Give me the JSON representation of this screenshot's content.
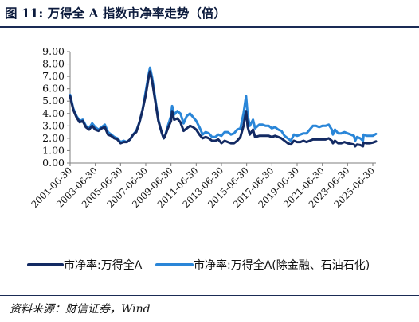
{
  "figure": {
    "title": "图 11:  万得全 A 指数市净率走势（倍）",
    "source": "资料来源：财信证券，Wind"
  },
  "colors": {
    "series1": "#132a63",
    "series2": "#2a86d8",
    "title": "#0b1a3c",
    "rule": "#1a2b55"
  },
  "chart_data": {
    "type": "line",
    "title": "",
    "xlabel": "",
    "ylabel": "",
    "ylim": [
      0,
      9
    ],
    "yticks": [
      "0.00",
      "1.00",
      "2.00",
      "3.00",
      "4.00",
      "5.00",
      "6.00",
      "7.00",
      "8.00",
      "9.00"
    ],
    "xticks": [
      "2001-06-30",
      "2003-06-30",
      "2005-06-30",
      "2007-06-30",
      "2009-06-30",
      "2011-06-30",
      "2013-06-30",
      "2015-06-30",
      "2017-06-30",
      "2019-06-30",
      "2021-06-30",
      "2023-06-30",
      "2025-06-30"
    ],
    "x_range": [
      "2001-06-30",
      "2025-09-30"
    ],
    "grid": false,
    "legend_position": "bottom",
    "series": [
      {
        "name": "市净率:万得全A",
        "color": "#132a63",
        "points": [
          [
            "2001-06-30",
            5.4
          ],
          [
            "2001-09-30",
            4.3
          ],
          [
            "2001-12-31",
            3.7
          ],
          [
            "2002-03-31",
            3.3
          ],
          [
            "2002-06-30",
            3.4
          ],
          [
            "2002-09-30",
            2.9
          ],
          [
            "2002-12-31",
            2.7
          ],
          [
            "2003-03-31",
            3.0
          ],
          [
            "2003-06-30",
            2.7
          ],
          [
            "2003-09-30",
            2.6
          ],
          [
            "2003-12-31",
            2.8
          ],
          [
            "2004-03-31",
            2.9
          ],
          [
            "2004-06-30",
            2.3
          ],
          [
            "2004-09-30",
            2.2
          ],
          [
            "2004-12-31",
            2.0
          ],
          [
            "2005-03-31",
            1.9
          ],
          [
            "2005-06-30",
            1.6
          ],
          [
            "2005-09-30",
            1.7
          ],
          [
            "2005-12-31",
            1.7
          ],
          [
            "2006-03-31",
            1.9
          ],
          [
            "2006-06-30",
            2.3
          ],
          [
            "2006-09-30",
            2.5
          ],
          [
            "2006-12-31",
            3.3
          ],
          [
            "2007-03-31",
            4.3
          ],
          [
            "2007-06-30",
            5.5
          ],
          [
            "2007-09-30",
            7.1
          ],
          [
            "2007-10-31",
            7.4
          ],
          [
            "2007-12-31",
            6.6
          ],
          [
            "2008-03-31",
            5.0
          ],
          [
            "2008-06-30",
            3.4
          ],
          [
            "2008-09-30",
            2.5
          ],
          [
            "2008-11-30",
            2.0
          ],
          [
            "2008-12-31",
            2.1
          ],
          [
            "2009-03-31",
            2.8
          ],
          [
            "2009-06-30",
            3.4
          ],
          [
            "2009-08-03",
            4.2
          ],
          [
            "2009-09-30",
            3.5
          ],
          [
            "2009-12-31",
            3.6
          ],
          [
            "2010-03-31",
            3.3
          ],
          [
            "2010-06-30",
            2.6
          ],
          [
            "2010-09-30",
            2.8
          ],
          [
            "2010-12-31",
            3.0
          ],
          [
            "2011-03-31",
            2.9
          ],
          [
            "2011-06-30",
            2.7
          ],
          [
            "2011-09-30",
            2.3
          ],
          [
            "2011-12-31",
            2.0
          ],
          [
            "2012-03-31",
            2.1
          ],
          [
            "2012-06-30",
            2.0
          ],
          [
            "2012-09-30",
            1.8
          ],
          [
            "2012-12-31",
            1.8
          ],
          [
            "2013-03-31",
            1.9
          ],
          [
            "2013-06-30",
            1.6
          ],
          [
            "2013-09-30",
            1.8
          ],
          [
            "2013-12-31",
            1.7
          ],
          [
            "2014-03-31",
            1.6
          ],
          [
            "2014-06-30",
            1.6
          ],
          [
            "2014-09-30",
            1.8
          ],
          [
            "2014-12-31",
            2.1
          ],
          [
            "2015-03-31",
            3.0
          ],
          [
            "2015-06-12",
            4.2
          ],
          [
            "2015-07-31",
            2.9
          ],
          [
            "2015-09-30",
            2.3
          ],
          [
            "2015-12-31",
            2.7
          ],
          [
            "2016-02-29",
            2.1
          ],
          [
            "2016-06-30",
            2.2
          ],
          [
            "2016-09-30",
            2.2
          ],
          [
            "2016-12-31",
            2.2
          ],
          [
            "2017-03-31",
            2.2
          ],
          [
            "2017-06-30",
            2.1
          ],
          [
            "2017-09-30",
            2.2
          ],
          [
            "2017-12-31",
            2.1
          ],
          [
            "2018-03-31",
            2.0
          ],
          [
            "2018-06-30",
            1.8
          ],
          [
            "2018-09-30",
            1.6
          ],
          [
            "2018-12-31",
            1.5
          ],
          [
            "2019-03-31",
            1.8
          ],
          [
            "2019-06-30",
            1.7
          ],
          [
            "2019-09-30",
            1.7
          ],
          [
            "2019-12-31",
            1.8
          ],
          [
            "2020-03-31",
            1.7
          ],
          [
            "2020-06-30",
            1.8
          ],
          [
            "2020-09-30",
            1.9
          ],
          [
            "2020-12-31",
            1.9
          ],
          [
            "2021-03-31",
            1.9
          ],
          [
            "2021-06-30",
            1.9
          ],
          [
            "2021-09-30",
            1.9
          ],
          [
            "2021-12-31",
            2.0
          ],
          [
            "2022-03-31",
            1.8
          ],
          [
            "2022-04-30",
            1.6
          ],
          [
            "2022-06-30",
            1.8
          ],
          [
            "2022-09-30",
            1.6
          ],
          [
            "2022-12-31",
            1.6
          ],
          [
            "2023-03-31",
            1.7
          ],
          [
            "2023-06-30",
            1.6
          ],
          [
            "2023-09-30",
            1.55
          ],
          [
            "2023-12-31",
            1.5
          ],
          [
            "2024-02-05",
            1.35
          ],
          [
            "2024-03-31",
            1.5
          ],
          [
            "2024-06-30",
            1.45
          ],
          [
            "2024-09-20",
            1.35
          ],
          [
            "2024-10-08",
            1.65
          ],
          [
            "2024-12-31",
            1.6
          ],
          [
            "2025-03-31",
            1.6
          ],
          [
            "2025-06-30",
            1.65
          ],
          [
            "2025-09-30",
            1.75
          ]
        ]
      },
      {
        "name": "市净率:万得全A(除金融、石油石化)",
        "color": "#2a86d8",
        "points": [
          [
            "2001-06-30",
            5.5
          ],
          [
            "2001-09-30",
            4.4
          ],
          [
            "2001-12-31",
            3.8
          ],
          [
            "2002-03-31",
            3.4
          ],
          [
            "2002-06-30",
            3.5
          ],
          [
            "2002-09-30",
            3.0
          ],
          [
            "2002-12-31",
            2.8
          ],
          [
            "2003-03-31",
            3.2
          ],
          [
            "2003-06-30",
            2.9
          ],
          [
            "2003-09-30",
            2.7
          ],
          [
            "2003-12-31",
            2.9
          ],
          [
            "2004-03-31",
            3.1
          ],
          [
            "2004-06-30",
            2.5
          ],
          [
            "2004-09-30",
            2.3
          ],
          [
            "2004-12-31",
            2.1
          ],
          [
            "2005-03-31",
            2.0
          ],
          [
            "2005-06-30",
            1.7
          ],
          [
            "2005-09-30",
            1.8
          ],
          [
            "2005-12-31",
            1.7
          ],
          [
            "2006-03-31",
            1.9
          ],
          [
            "2006-06-30",
            2.3
          ],
          [
            "2006-09-30",
            2.6
          ],
          [
            "2006-12-31",
            3.3
          ],
          [
            "2007-03-31",
            4.3
          ],
          [
            "2007-06-30",
            5.8
          ],
          [
            "2007-09-30",
            7.3
          ],
          [
            "2007-10-31",
            7.7
          ],
          [
            "2007-12-31",
            6.9
          ],
          [
            "2008-03-31",
            5.2
          ],
          [
            "2008-06-30",
            3.5
          ],
          [
            "2008-09-30",
            2.5
          ],
          [
            "2008-11-30",
            2.0
          ],
          [
            "2008-12-31",
            2.1
          ],
          [
            "2009-03-31",
            3.0
          ],
          [
            "2009-06-30",
            3.8
          ],
          [
            "2009-08-03",
            4.6
          ],
          [
            "2009-09-30",
            3.9
          ],
          [
            "2009-12-31",
            4.2
          ],
          [
            "2010-03-31",
            4.0
          ],
          [
            "2010-06-30",
            3.2
          ],
          [
            "2010-09-30",
            3.8
          ],
          [
            "2010-12-31",
            4.0
          ],
          [
            "2011-03-31",
            3.7
          ],
          [
            "2011-06-30",
            3.4
          ],
          [
            "2011-09-30",
            2.9
          ],
          [
            "2011-12-31",
            2.3
          ],
          [
            "2012-03-31",
            2.5
          ],
          [
            "2012-06-30",
            2.4
          ],
          [
            "2012-09-30",
            2.1
          ],
          [
            "2012-12-31",
            2.1
          ],
          [
            "2013-03-31",
            2.3
          ],
          [
            "2013-06-30",
            2.2
          ],
          [
            "2013-09-30",
            2.5
          ],
          [
            "2013-12-31",
            2.5
          ],
          [
            "2014-03-31",
            2.3
          ],
          [
            "2014-06-30",
            2.4
          ],
          [
            "2014-09-30",
            2.7
          ],
          [
            "2014-12-31",
            2.8
          ],
          [
            "2015-03-31",
            4.0
          ],
          [
            "2015-06-12",
            5.4
          ],
          [
            "2015-07-31",
            3.8
          ],
          [
            "2015-09-30",
            3.0
          ],
          [
            "2015-12-31",
            3.5
          ],
          [
            "2016-02-29",
            2.8
          ],
          [
            "2016-06-30",
            3.1
          ],
          [
            "2016-09-30",
            3.1
          ],
          [
            "2016-12-31",
            3.0
          ],
          [
            "2017-03-31",
            3.0
          ],
          [
            "2017-06-30",
            2.8
          ],
          [
            "2017-09-30",
            2.9
          ],
          [
            "2017-12-31",
            2.7
          ],
          [
            "2018-03-31",
            2.6
          ],
          [
            "2018-06-30",
            2.2
          ],
          [
            "2018-09-30",
            2.0
          ],
          [
            "2018-12-31",
            1.8
          ],
          [
            "2019-03-31",
            2.3
          ],
          [
            "2019-06-30",
            2.2
          ],
          [
            "2019-09-30",
            2.3
          ],
          [
            "2019-12-31",
            2.4
          ],
          [
            "2020-03-31",
            2.4
          ],
          [
            "2020-06-30",
            2.7
          ],
          [
            "2020-09-30",
            3.0
          ],
          [
            "2020-12-31",
            3.0
          ],
          [
            "2021-03-31",
            2.9
          ],
          [
            "2021-06-30",
            3.0
          ],
          [
            "2021-09-30",
            3.0
          ],
          [
            "2021-12-31",
            3.1
          ],
          [
            "2022-03-31",
            2.7
          ],
          [
            "2022-04-30",
            2.3
          ],
          [
            "2022-06-30",
            2.7
          ],
          [
            "2022-09-30",
            2.4
          ],
          [
            "2022-12-31",
            2.4
          ],
          [
            "2023-03-31",
            2.5
          ],
          [
            "2023-06-30",
            2.4
          ],
          [
            "2023-09-30",
            2.3
          ],
          [
            "2023-12-31",
            2.2
          ],
          [
            "2024-02-05",
            1.8
          ],
          [
            "2024-03-31",
            2.1
          ],
          [
            "2024-06-30",
            2.0
          ],
          [
            "2024-09-20",
            1.8
          ],
          [
            "2024-10-08",
            2.3
          ],
          [
            "2024-12-31",
            2.2
          ],
          [
            "2025-03-31",
            2.2
          ],
          [
            "2025-06-30",
            2.2
          ],
          [
            "2025-09-30",
            2.35
          ]
        ]
      }
    ]
  }
}
